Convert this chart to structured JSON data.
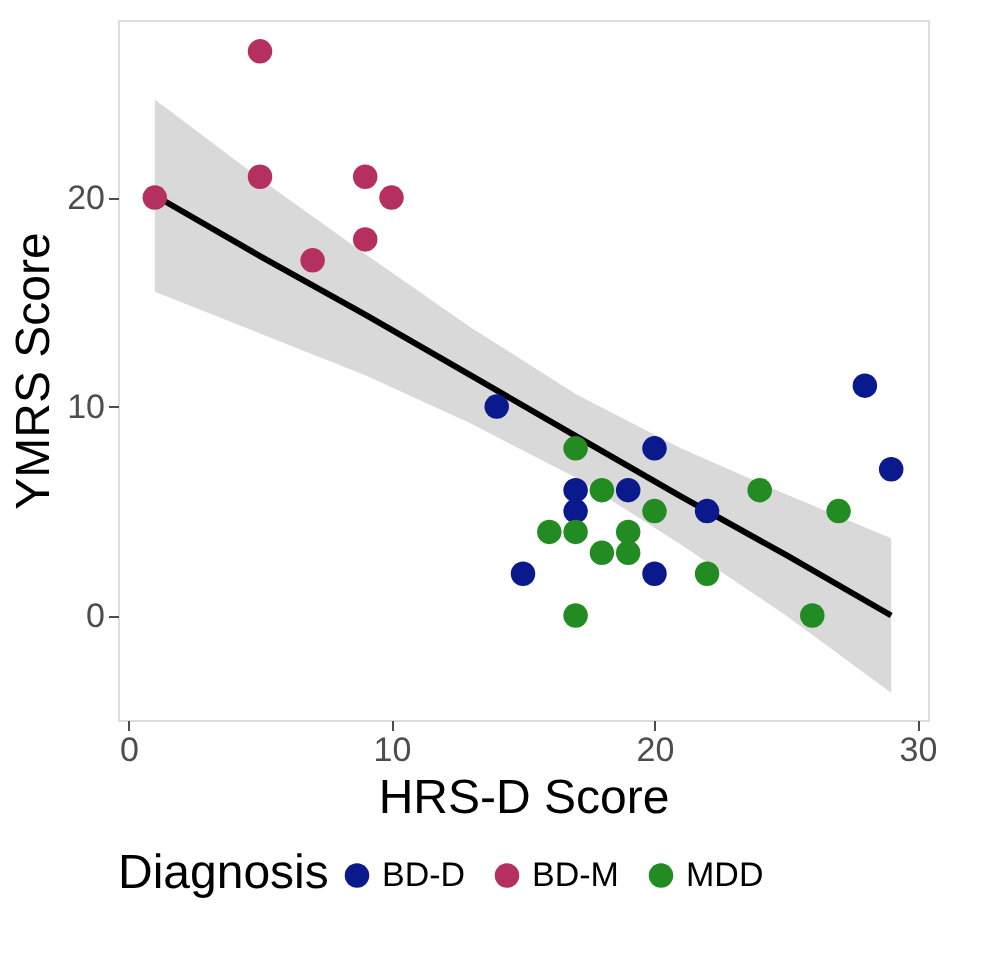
{
  "chart_data": {
    "type": "scatter",
    "xlabel": "HRS-D Score",
    "ylabel": "YMRS Score",
    "legend_title": "Diagnosis",
    "xlim": [
      -0.4,
      30.4
    ],
    "ylim": [
      -5,
      28.5
    ],
    "xticks": [
      0,
      10,
      20,
      30
    ],
    "yticks": [
      0,
      10,
      20
    ],
    "grid": false,
    "legend": "bottom",
    "marker": "circle",
    "series": [
      {
        "name": "BD-D",
        "color": "#0a1a8c",
        "x": [
          14,
          15,
          17,
          17,
          19,
          20,
          20,
          22,
          28,
          29
        ],
        "values": [
          10,
          2,
          6,
          5,
          6,
          8,
          2,
          5,
          11,
          7
        ]
      },
      {
        "name": "BD-M",
        "color": "#b5305f",
        "x": [
          1,
          5,
          5,
          7,
          9,
          9,
          10
        ],
        "values": [
          20,
          27,
          21,
          17,
          21,
          18,
          20
        ]
      },
      {
        "name": "MDD",
        "color": "#228b22",
        "x": [
          17,
          18,
          16,
          17,
          19,
          19,
          18,
          20,
          22,
          24,
          27,
          17,
          26
        ],
        "values": [
          8,
          6,
          4,
          4,
          4,
          3,
          3,
          5,
          2,
          6,
          5,
          0,
          0
        ]
      },
      {
        "type": "line",
        "color": "#000000",
        "line_style": "solid",
        "marker": "none",
        "x": [
          1,
          5,
          9,
          13,
          17,
          21,
          25,
          29
        ],
        "values": [
          20.1,
          17.2,
          14.4,
          11.5,
          8.6,
          5.7,
          2.9,
          0.0
        ],
        "lower": [
          15.5,
          13.5,
          11.5,
          9.2,
          6.6,
          3.4,
          0.0,
          -3.7
        ],
        "upper": [
          24.7,
          20.9,
          17.3,
          13.8,
          10.6,
          8.0,
          5.8,
          3.7
        ]
      }
    ]
  }
}
